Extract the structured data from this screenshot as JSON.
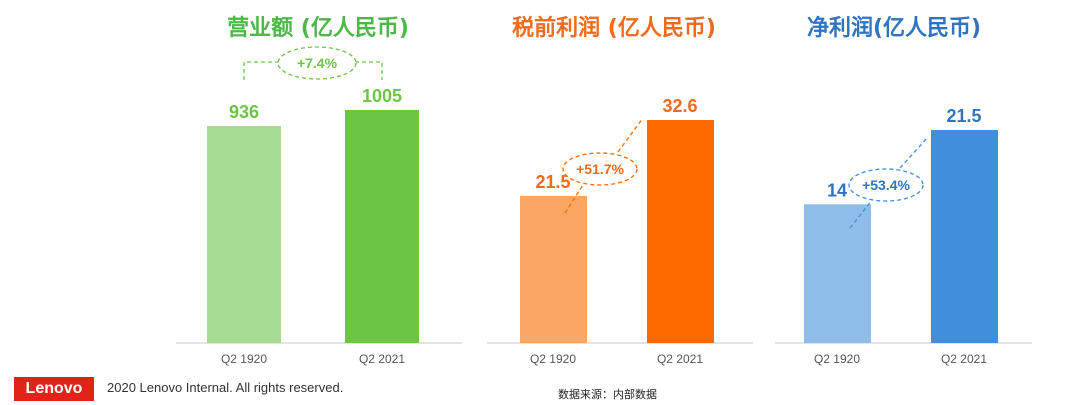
{
  "colors": {
    "green_dark": "#6cc644",
    "green_light": "#a8dc93",
    "green_title": "#4cb848",
    "orange_dark": "#ff6a00",
    "orange_light": "#fca666",
    "orange_title": "#f26a1b",
    "blue_dark": "#3f8fdc",
    "blue_light": "#8fbdea",
    "blue_title": "#2f74c0",
    "axis": "#c8c8c8",
    "tick": "#555555"
  },
  "chart_data": [
    {
      "type": "bar",
      "title": "营业额 (亿人民币)",
      "categories": [
        "Q2 1920",
        "Q2 2021"
      ],
      "values": [
        936,
        1005
      ],
      "value_labels": [
        "936",
        "1005"
      ],
      "annotation": "+7.4%",
      "ylim": [
        0,
        1005
      ]
    },
    {
      "type": "bar",
      "title": "税前利润 (亿人民币)",
      "categories": [
        "Q2 1920",
        "Q2 2021"
      ],
      "values": [
        21.5,
        32.6
      ],
      "value_labels": [
        "21.5",
        "32.6"
      ],
      "annotation": "+51.7%",
      "ylim": [
        0,
        32.6
      ]
    },
    {
      "type": "bar",
      "title": "净利润(亿人民币)",
      "categories": [
        "Q2 1920",
        "Q2 2021"
      ],
      "values": [
        14,
        21.5
      ],
      "value_labels": [
        "14",
        "21.5"
      ],
      "annotation": "+53.4%",
      "ylim": [
        0,
        21.5
      ]
    }
  ],
  "footer": {
    "logo": "Lenovo",
    "copyright": "2020 Lenovo Internal. All rights reserved.",
    "source": "数据来源：内部数据"
  }
}
